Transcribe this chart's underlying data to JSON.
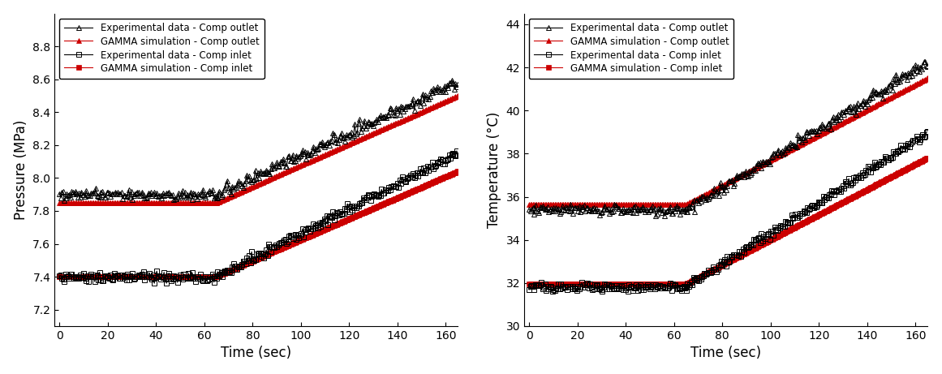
{
  "left_plot": {
    "ylabel": "Pressure (MPa)",
    "xlabel": "Time (sec)",
    "xlim": [
      -2,
      165
    ],
    "ylim": [
      7.1,
      9.0
    ],
    "yticks": [
      7.2,
      7.4,
      7.6,
      7.8,
      8.0,
      8.2,
      8.4,
      8.6,
      8.8
    ],
    "xticks": [
      0,
      20,
      40,
      60,
      80,
      100,
      120,
      140,
      160
    ],
    "phase1_end": 65,
    "phase2_end": 165,
    "exp_outlet_flat": 7.9,
    "exp_outlet_end": 8.58,
    "exp_inlet_flat": 7.4,
    "exp_inlet_end": 8.15,
    "sim_outlet_flat": 7.85,
    "sim_outlet_end": 8.5,
    "sim_inlet_flat": 7.4,
    "sim_inlet_end": 8.04,
    "exp_noise": 0.018,
    "sim_noise": 0.0
  },
  "right_plot": {
    "ylabel": "Temperature (°C)",
    "xlabel": "Time (sec)",
    "xlim": [
      -2,
      165
    ],
    "ylim": [
      30,
      44.5
    ],
    "yticks": [
      30,
      32,
      34,
      36,
      38,
      40,
      42,
      44
    ],
    "xticks": [
      0,
      20,
      40,
      60,
      80,
      100,
      120,
      140,
      160
    ],
    "phase1_end": 65,
    "phase2_end": 165,
    "exp_outlet_flat": 35.4,
    "exp_outlet_end": 42.2,
    "exp_inlet_flat": 31.8,
    "exp_inlet_end": 39.0,
    "sim_outlet_flat": 35.65,
    "sim_outlet_end": 41.5,
    "sim_inlet_flat": 31.95,
    "sim_inlet_end": 37.8,
    "exp_noise": 0.12,
    "sim_noise": 0.0
  },
  "legend_labels": [
    "Experimental data - Comp outlet",
    "Experimental data - Comp inlet",
    "GAMMA simulation - Comp outlet",
    "GAMMA simulation - Comp inlet"
  ],
  "exp_color": "#000000",
  "sim_color": "#cc0000",
  "marker_size": 4.5,
  "linewidth": 0.8,
  "legend_fontsize": 8.5,
  "axis_label_fontsize": 12,
  "tick_fontsize": 10
}
